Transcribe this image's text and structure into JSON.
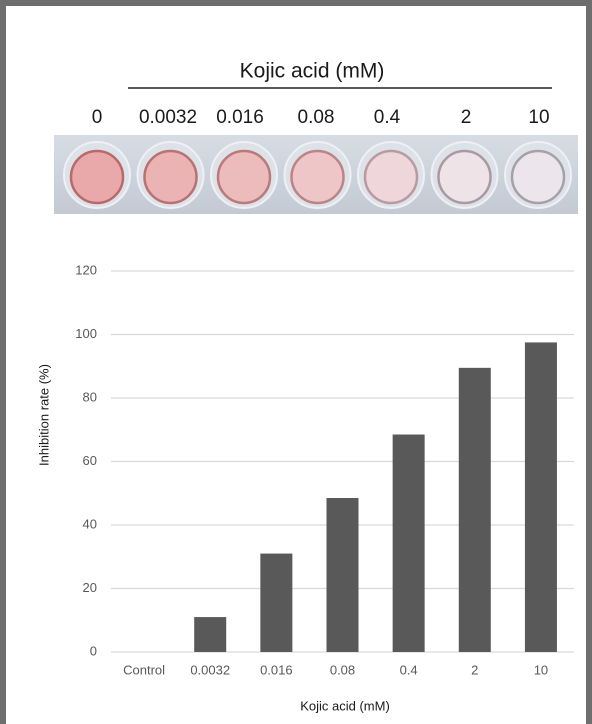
{
  "plate": {
    "title": "Kojic acid (mM)",
    "labels": [
      "0",
      "0.0032",
      "0.016",
      "0.08",
      "0.4",
      "2",
      "10"
    ]
  },
  "chart_data": {
    "type": "bar",
    "categories": [
      "Control",
      "0.0032",
      "0.016",
      "0.08",
      "0.4",
      "2",
      "10"
    ],
    "values": [
      0,
      11,
      31,
      48.5,
      68.5,
      89.5,
      97.5
    ],
    "color": "#595959",
    "x_label": "Kojic acid (mM)",
    "y_label": "Inhibition rate (%)",
    "ylim": [
      0,
      120
    ],
    "yticks": [
      0,
      20,
      40,
      60,
      80,
      100,
      120
    ],
    "grid": true
  }
}
